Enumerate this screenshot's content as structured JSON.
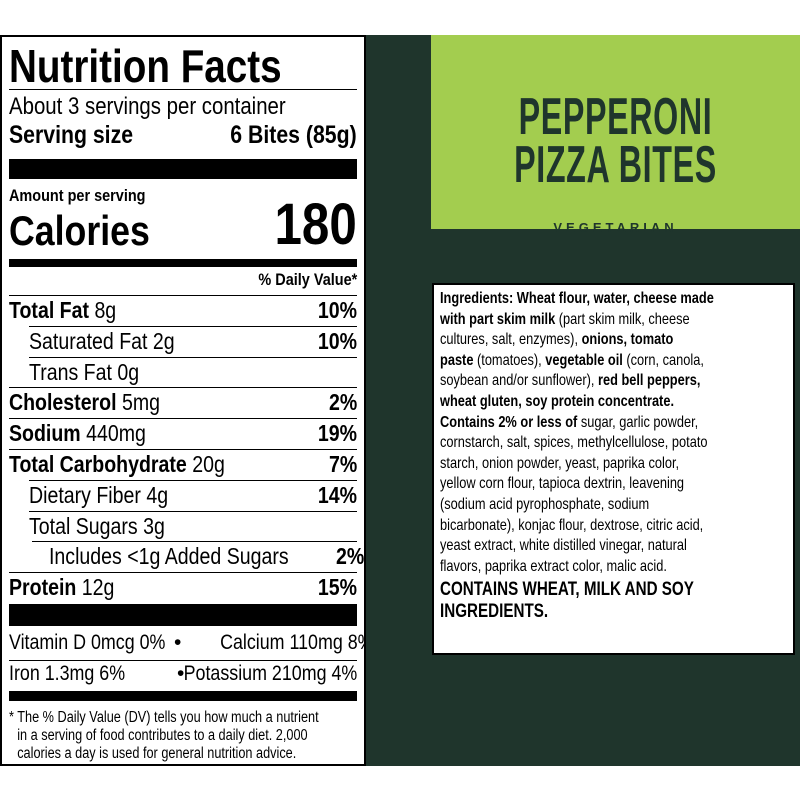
{
  "label": {
    "title": "Nutrition Facts",
    "servings": "About 3 servings per container",
    "serving_size_label": "Serving size",
    "serving_size_value": "6 Bites (85g)",
    "amount_per_serving": "Amount per serving",
    "calories_label": "Calories",
    "calories_value": "180",
    "dv_header": "% Daily Value*",
    "rows": [
      {
        "name": "Total Fat",
        "amount": "8g",
        "dv": "10%"
      },
      {
        "name": "Saturated Fat",
        "amount": "2g",
        "dv": "10%"
      },
      {
        "name": "Trans Fat",
        "amount": "0g",
        "dv": ""
      },
      {
        "name": "Cholesterol",
        "amount": "5mg",
        "dv": "2%"
      },
      {
        "name": "Sodium",
        "amount": "440mg",
        "dv": "19%"
      },
      {
        "name": "Total Carbohydrate",
        "amount": "20g",
        "dv": "7%"
      },
      {
        "name": "Dietary Fiber",
        "amount": "4g",
        "dv": "14%"
      },
      {
        "name": "Total Sugars",
        "amount": "3g",
        "dv": ""
      },
      {
        "name": "Includes <1g Added Sugars",
        "amount": "",
        "dv": "2%"
      },
      {
        "name": "Protein",
        "amount": "12g",
        "dv": "15%"
      }
    ],
    "vitamins": [
      {
        "left": "Vitamin D 0mcg 0%",
        "right": "Calcium 110mg 8%"
      },
      {
        "left": "Iron 1.3mg 6%",
        "right": "Potassium 210mg 4%"
      }
    ],
    "bullet": "•",
    "footnote": [
      "* The % Daily Value (DV) tells you how much a nutrient",
      "in a serving of food contributes to a daily diet. 2,000",
      "calories a day is used for general nutrition advice."
    ]
  },
  "product": {
    "title_line1": "PEPPERONI",
    "title_line2": "PIZZA BITES",
    "subtitle": "VEGETARIAN"
  },
  "colors": {
    "panel": "#1f352c",
    "lime": "#a3cd4f"
  },
  "ingredients": {
    "lines": [
      [
        [
          "Ingredients: Wheat flour, water, cheese made",
          true
        ]
      ],
      [
        [
          "with part skim milk",
          true
        ],
        [
          " (part skim milk, cheese",
          false
        ]
      ],
      [
        [
          "cultures, salt, enzymes), ",
          false
        ],
        [
          "onions, tomato",
          true
        ]
      ],
      [
        [
          "paste",
          true
        ],
        [
          " (tomatoes), ",
          false
        ],
        [
          "vegetable oil",
          true
        ],
        [
          " (corn, canola,",
          false
        ]
      ],
      [
        [
          "soybean and/or sunflower), ",
          false
        ],
        [
          "red bell peppers,",
          true
        ]
      ],
      [
        [
          "wheat gluten, soy protein concentrate.",
          true
        ]
      ],
      [
        [
          "Contains 2% or less of",
          true
        ],
        [
          " sugar, garlic powder,",
          false
        ]
      ],
      [
        [
          "cornstarch, salt, spices, methylcellulose, potato",
          false
        ]
      ],
      [
        [
          "starch, onion powder, yeast, paprika color,",
          false
        ]
      ],
      [
        [
          "yellow corn flour, tapioca dextrin, leavening",
          false
        ]
      ],
      [
        [
          "(sodium acid pyrophosphate, sodium",
          false
        ]
      ],
      [
        [
          "bicarbonate), konjac flour, dextrose, citric acid,",
          false
        ]
      ],
      [
        [
          "yeast extract, white distilled vinegar, natural",
          false
        ]
      ],
      [
        [
          "flavors, paprika extract color, malic acid.",
          false
        ]
      ]
    ],
    "allergen": [
      "CONTAINS WHEAT, MILK AND SOY",
      "INGREDIENTS."
    ]
  }
}
